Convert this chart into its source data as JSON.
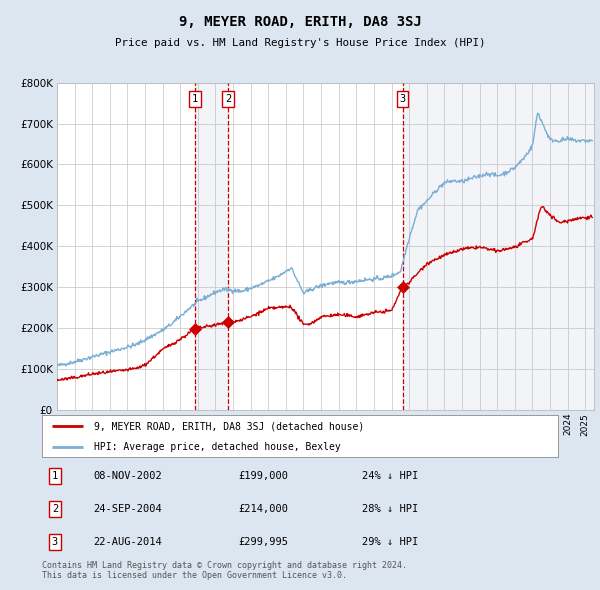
{
  "title": "9, MEYER ROAD, ERITH, DA8 3SJ",
  "subtitle": "Price paid vs. HM Land Registry's House Price Index (HPI)",
  "footer1": "Contains HM Land Registry data © Crown copyright and database right 2024.",
  "footer2": "This data is licensed under the Open Government Licence v3.0.",
  "legend_line1": "9, MEYER ROAD, ERITH, DA8 3SJ (detached house)",
  "legend_line2": "HPI: Average price, detached house, Bexley",
  "sale_color": "#cc0000",
  "hpi_color": "#7bafd4",
  "background_color": "#dce6f1",
  "plot_bg": "#ffffff",
  "grid_color": "#cccccc",
  "sales": [
    {
      "label": "1",
      "date": "08-NOV-2002",
      "price": 199000,
      "year": 2002.85
    },
    {
      "label": "2",
      "date": "24-SEP-2004",
      "price": 214000,
      "year": 2004.72
    },
    {
      "label": "3",
      "date": "22-AUG-2014",
      "price": 299995,
      "year": 2014.63
    }
  ],
  "sale_pct": [
    "24% ↓ HPI",
    "28% ↓ HPI",
    "29% ↓ HPI"
  ],
  "ylim": [
    0,
    800000
  ],
  "yticks": [
    0,
    100000,
    200000,
    300000,
    400000,
    500000,
    600000,
    700000,
    800000
  ],
  "xlim_start": 1995.0,
  "xlim_end": 2025.5
}
